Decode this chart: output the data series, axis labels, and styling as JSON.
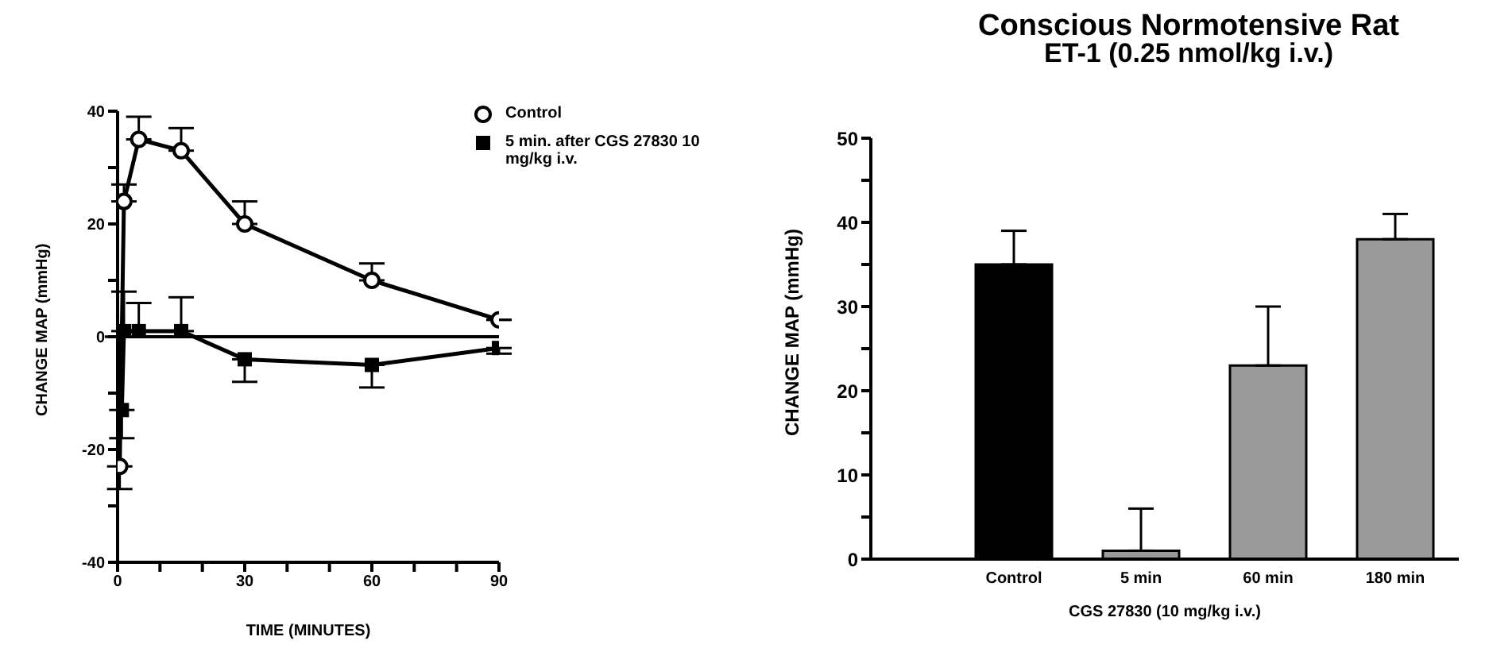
{
  "chart_data": [
    {
      "type": "line",
      "xlabel": "TIME (MINUTES)",
      "ylabel": "CHANGE MAP (mmHg)",
      "xlim": [
        0,
        90
      ],
      "xticks": [
        0,
        {
          "value": 10,
          "label": null
        },
        {
          "value": 20,
          "label": null
        },
        30,
        {
          "value": 40,
          "label": null
        },
        {
          "value": 50,
          "label": null
        },
        60,
        {
          "value": 70,
          "label": null
        },
        {
          "value": 80,
          "label": null
        },
        90
      ],
      "ylim": [
        -40,
        40
      ],
      "yticks": [
        -40,
        {
          "value": -30,
          "label": null
        },
        -20,
        {
          "value": -10,
          "label": null
        },
        0,
        {
          "value": 10,
          "label": null
        },
        20,
        {
          "value": 30,
          "label": null
        },
        40
      ],
      "grid": false,
      "legend": "top right",
      "ref_lines": [
        {
          "axis": "y",
          "value": 0,
          "color": "#000000"
        }
      ],
      "series": [
        {
          "name": "Control",
          "color": "#000000",
          "marker": "circle",
          "x": [
            0.5,
            1.5,
            5,
            15,
            30,
            60,
            90
          ],
          "values": [
            -23,
            24,
            35,
            33,
            20,
            10,
            3
          ],
          "errors": [
            [
              -27,
              -23
            ],
            [
              24,
              27
            ],
            [
              35,
              39
            ],
            [
              33,
              37
            ],
            [
              20,
              24
            ],
            [
              10,
              13
            ],
            null
          ]
        },
        {
          "name": "5 min. after CGS 27830 10 mg/kg i.v.",
          "color": "#000000",
          "marker": "square",
          "x": [
            0,
            1,
            1.5,
            5,
            15,
            30,
            60,
            90
          ],
          "values": [
            0,
            -13,
            1,
            1,
            1,
            -4,
            -5,
            -2
          ],
          "errors": [
            null,
            [
              -18,
              -13
            ],
            [
              1,
              8
            ],
            [
              1,
              6
            ],
            [
              1,
              7
            ],
            [
              -8,
              -4
            ],
            [
              -9,
              -5
            ],
            [
              -3,
              -2
            ]
          ]
        }
      ]
    },
    {
      "type": "bar",
      "title": "Conscious Normotensive Rat",
      "subtitle": "ET-1 (0.25 nmol/kg i.v.)",
      "xlabel": "CGS 27830 (10 mg/kg i.v.)",
      "ylabel": "CHANGE MAP (mmHg)",
      "categories": [
        "Control",
        "5 min",
        "60 min",
        "180 min"
      ],
      "values": [
        35,
        1,
        23,
        38
      ],
      "errors": [
        [
          35,
          39
        ],
        [
          1,
          6
        ],
        [
          23,
          30
        ],
        [
          38,
          41
        ]
      ],
      "colors": [
        "#000000",
        "#9a9a9a",
        "#9a9a9a",
        "#9a9a9a"
      ],
      "ylim": [
        0,
        50
      ],
      "yticks": [
        0,
        {
          "value": 5,
          "label": null
        },
        10,
        {
          "value": 15,
          "label": null
        },
        20,
        {
          "value": 25,
          "label": null
        },
        30,
        {
          "value": 35,
          "label": null
        },
        40,
        {
          "value": 45,
          "label": null
        },
        50
      ],
      "grid": false
    }
  ]
}
